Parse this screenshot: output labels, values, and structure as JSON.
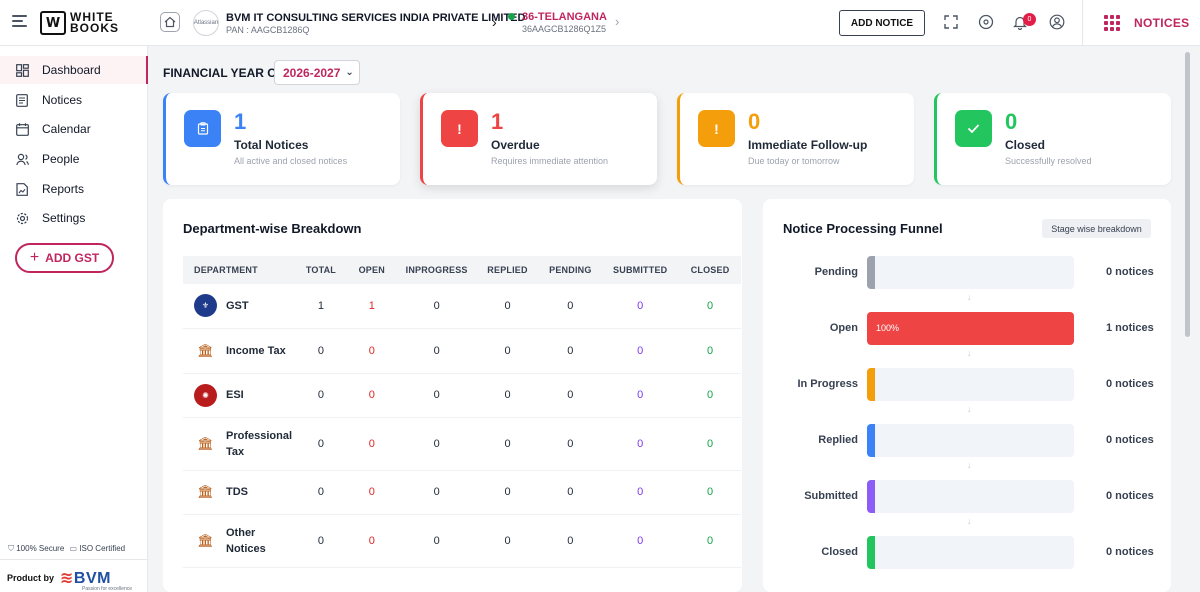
{
  "header": {
    "logo_top": "WHITE",
    "logo_bottom": "BOOKS",
    "company_logo_text": "Atlassian",
    "company_name": "BVM IT CONSULTING SERVICES INDIA PRIVATE LIMITED",
    "company_pan": "PAN : AAGCB1286Q",
    "state_name": "36-TELANGANA",
    "state_gstin": "36AAGCB1286Q1Z5",
    "add_notice_label": "ADD NOTICE",
    "notification_count": "0",
    "notices_tab_label": "NOTICES"
  },
  "sidebar": {
    "items": [
      {
        "label": "Dashboard",
        "icon": "dashboard-icon"
      },
      {
        "label": "Notices",
        "icon": "notices-icon"
      },
      {
        "label": "Calendar",
        "icon": "calendar-icon"
      },
      {
        "label": "People",
        "icon": "people-icon"
      },
      {
        "label": "Reports",
        "icon": "reports-icon"
      },
      {
        "label": "Settings",
        "icon": "settings-icon"
      }
    ],
    "add_gst_label": "ADD GST",
    "secure_text": "100% Secure",
    "iso_text": "ISO Certified",
    "product_by": "Product by",
    "brand": "BVM",
    "brand_tagline": "Passion for excellence"
  },
  "filter": {
    "label": "FINANCIAL YEAR OF",
    "selected_year": "2026-2027"
  },
  "stats": [
    {
      "value": "1",
      "title": "Total Notices",
      "subtitle": "All active and closed notices",
      "color": "#3b82f6",
      "icon": "clipboard-icon"
    },
    {
      "value": "1",
      "title": "Overdue",
      "subtitle": "Requires immediate attention",
      "color": "#ef4444",
      "icon": "alert-icon"
    },
    {
      "value": "0",
      "title": "Immediate Follow-up",
      "subtitle": "Due today or tomorrow",
      "color": "#f59e0b",
      "icon": "warning-icon"
    },
    {
      "value": "0",
      "title": "Closed",
      "subtitle": "Successfully resolved",
      "color": "#22c55e",
      "icon": "check-icon"
    }
  ],
  "breakdown": {
    "title": "Department-wise Breakdown",
    "columns": [
      "DEPARTMENT",
      "TOTAL",
      "OPEN",
      "INPROGRESS",
      "REPLIED",
      "PENDING",
      "SUBMITTED",
      "CLOSED"
    ],
    "rows": [
      {
        "dept": "GST",
        "icon": "gst-emblem-icon",
        "values": [
          "1",
          "1",
          "0",
          "0",
          "0",
          "0",
          "0"
        ]
      },
      {
        "dept": "Income Tax",
        "icon": "income-tax-emblem-icon",
        "values": [
          "0",
          "0",
          "0",
          "0",
          "0",
          "0",
          "0"
        ]
      },
      {
        "dept": "ESI",
        "icon": "esi-emblem-icon",
        "values": [
          "0",
          "0",
          "0",
          "0",
          "0",
          "0",
          "0"
        ]
      },
      {
        "dept": "Professional Tax",
        "icon": "professional-tax-emblem-icon",
        "values": [
          "0",
          "0",
          "0",
          "0",
          "0",
          "0",
          "0"
        ]
      },
      {
        "dept": "TDS",
        "icon": "tds-emblem-icon",
        "values": [
          "0",
          "0",
          "0",
          "0",
          "0",
          "0",
          "0"
        ]
      },
      {
        "dept": "Other Notices",
        "icon": "other-notices-emblem-icon",
        "values": [
          "0",
          "0",
          "0",
          "0",
          "0",
          "0",
          "0"
        ]
      }
    ]
  },
  "funnel": {
    "title": "Notice Processing Funnel",
    "badge": "Stage wise breakdown",
    "stages": [
      {
        "label": "Pending",
        "count": "0 notices",
        "color": "#9ca3af",
        "fraction": 0,
        "percent_label": ""
      },
      {
        "label": "Open",
        "count": "1 notices",
        "color": "#ef4444",
        "fraction": 1,
        "percent_label": "100%"
      },
      {
        "label": "In Progress",
        "count": "0 notices",
        "color": "#f59e0b",
        "fraction": 0,
        "percent_label": ""
      },
      {
        "label": "Replied",
        "count": "0 notices",
        "color": "#3b82f6",
        "fraction": 0,
        "percent_label": ""
      },
      {
        "label": "Submitted",
        "count": "0 notices",
        "color": "#8b5cf6",
        "fraction": 0,
        "percent_label": ""
      },
      {
        "label": "Closed",
        "count": "0 notices",
        "color": "#22c55e",
        "fraction": 0,
        "percent_label": ""
      }
    ]
  }
}
